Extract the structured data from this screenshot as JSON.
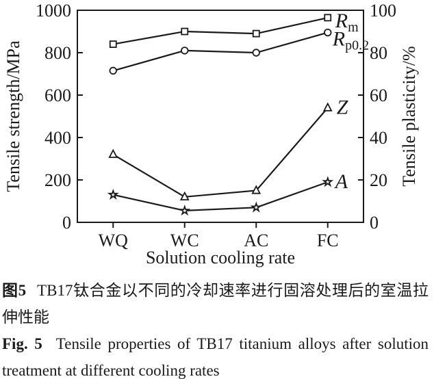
{
  "figure": {
    "caption_zh_label": "图5",
    "caption_zh_text": "TB17钛合金以不同的冷却速率进行固溶处理后的室温拉伸性能",
    "caption_en_label": "Fig. 5",
    "caption_en_text": "Tensile properties of TB17 titanium alloys after solution treatment at different cooling rates"
  },
  "chart_data": {
    "type": "line",
    "title": "",
    "categories": [
      "WQ",
      "WC",
      "AC",
      "FC"
    ],
    "xlabel": "Solution cooling rate",
    "ylabel_left": "Tensile strength/MPa",
    "ylabel_right": "Tensile plasticity/%",
    "ylim_left": [
      0,
      1000
    ],
    "yticks_left": [
      0,
      200,
      400,
      600,
      800,
      1000
    ],
    "ylim_right": [
      0,
      100
    ],
    "yticks_right": [
      0,
      20,
      40,
      60,
      80,
      100
    ],
    "grid": false,
    "legend_position": "series-end-labels",
    "line_color": "#1a1a1a",
    "series": [
      {
        "name": "Rm",
        "label_main": "R",
        "label_sub": "m",
        "axis": "left",
        "marker": "square",
        "values": [
          840,
          900,
          890,
          965
        ]
      },
      {
        "name": "Rp0.2",
        "label_main": "R",
        "label_sub": "p0.2",
        "axis": "left",
        "marker": "circle",
        "values": [
          715,
          810,
          800,
          895
        ]
      },
      {
        "name": "Z",
        "label_main": "Z",
        "label_sub": "",
        "axis": "right",
        "marker": "triangle",
        "values": [
          32,
          12,
          15,
          54
        ]
      },
      {
        "name": "A",
        "label_main": "A",
        "label_sub": "",
        "axis": "right",
        "marker": "star",
        "values": [
          13,
          5.5,
          7,
          19
        ]
      }
    ]
  }
}
